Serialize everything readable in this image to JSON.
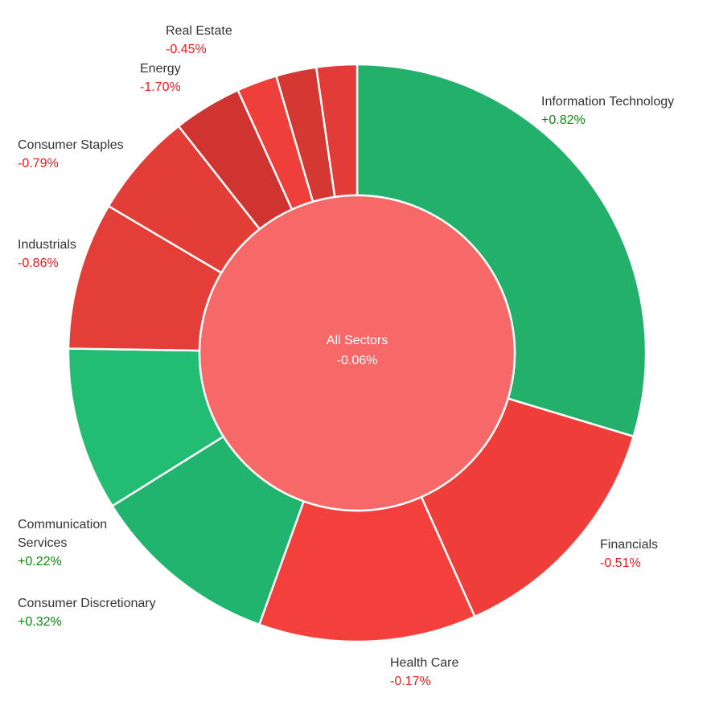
{
  "chart_data": {
    "type": "pie",
    "subtype": "sunburst",
    "center": {
      "label": "All Sectors",
      "value": "-0.06%",
      "color": "#f76868"
    },
    "colors": {
      "positive": "#22b573",
      "negative": "#ef3e3a",
      "label_positive": "#0a8a0a",
      "label_negative": "#f01919"
    },
    "slices": [
      {
        "name": "Information Technology",
        "value_label": "+0.82%",
        "change": 0.82,
        "weight": 30.2,
        "color": "#22b06b",
        "labeled": true
      },
      {
        "name": "Financials",
        "value_label": "-0.51%",
        "change": -0.51,
        "weight": 13.9,
        "color": "#ef3e3a",
        "labeled": true
      },
      {
        "name": "Health Care",
        "value_label": "-0.17%",
        "change": -0.17,
        "weight": 12.4,
        "color": "#f4403c",
        "labeled": true
      },
      {
        "name": "Consumer Discretionary",
        "value_label": "+0.32%",
        "change": 0.32,
        "weight": 10.8,
        "color": "#21b46e",
        "labeled": true
      },
      {
        "name": "Communication Services",
        "value_label": "+0.22%",
        "change": 0.22,
        "weight": 9.3,
        "color": "#22bd72",
        "labeled": true
      },
      {
        "name": "Industrials",
        "value_label": "-0.86%",
        "change": -0.86,
        "weight": 8.4,
        "color": "#e33e37",
        "labeled": true
      },
      {
        "name": "Consumer Staples",
        "value_label": "-0.79%",
        "change": -0.79,
        "weight": 6.0,
        "color": "#e33d37",
        "labeled": true
      },
      {
        "name": "Energy",
        "value_label": "-1.70%",
        "change": -1.7,
        "weight": 3.9,
        "color": "#cf3431",
        "labeled": true
      },
      {
        "name": "Real Estate",
        "value_label": "-0.45%",
        "change": -0.45,
        "weight": 2.3,
        "color": "#ef3f3b",
        "labeled": true
      },
      {
        "name": "",
        "value_label": "",
        "change": null,
        "weight": 2.3,
        "color": "#d53733",
        "labeled": false
      },
      {
        "name": "",
        "value_label": "",
        "change": null,
        "weight": 2.3,
        "color": "#e33b37",
        "labeled": false
      }
    ]
  }
}
